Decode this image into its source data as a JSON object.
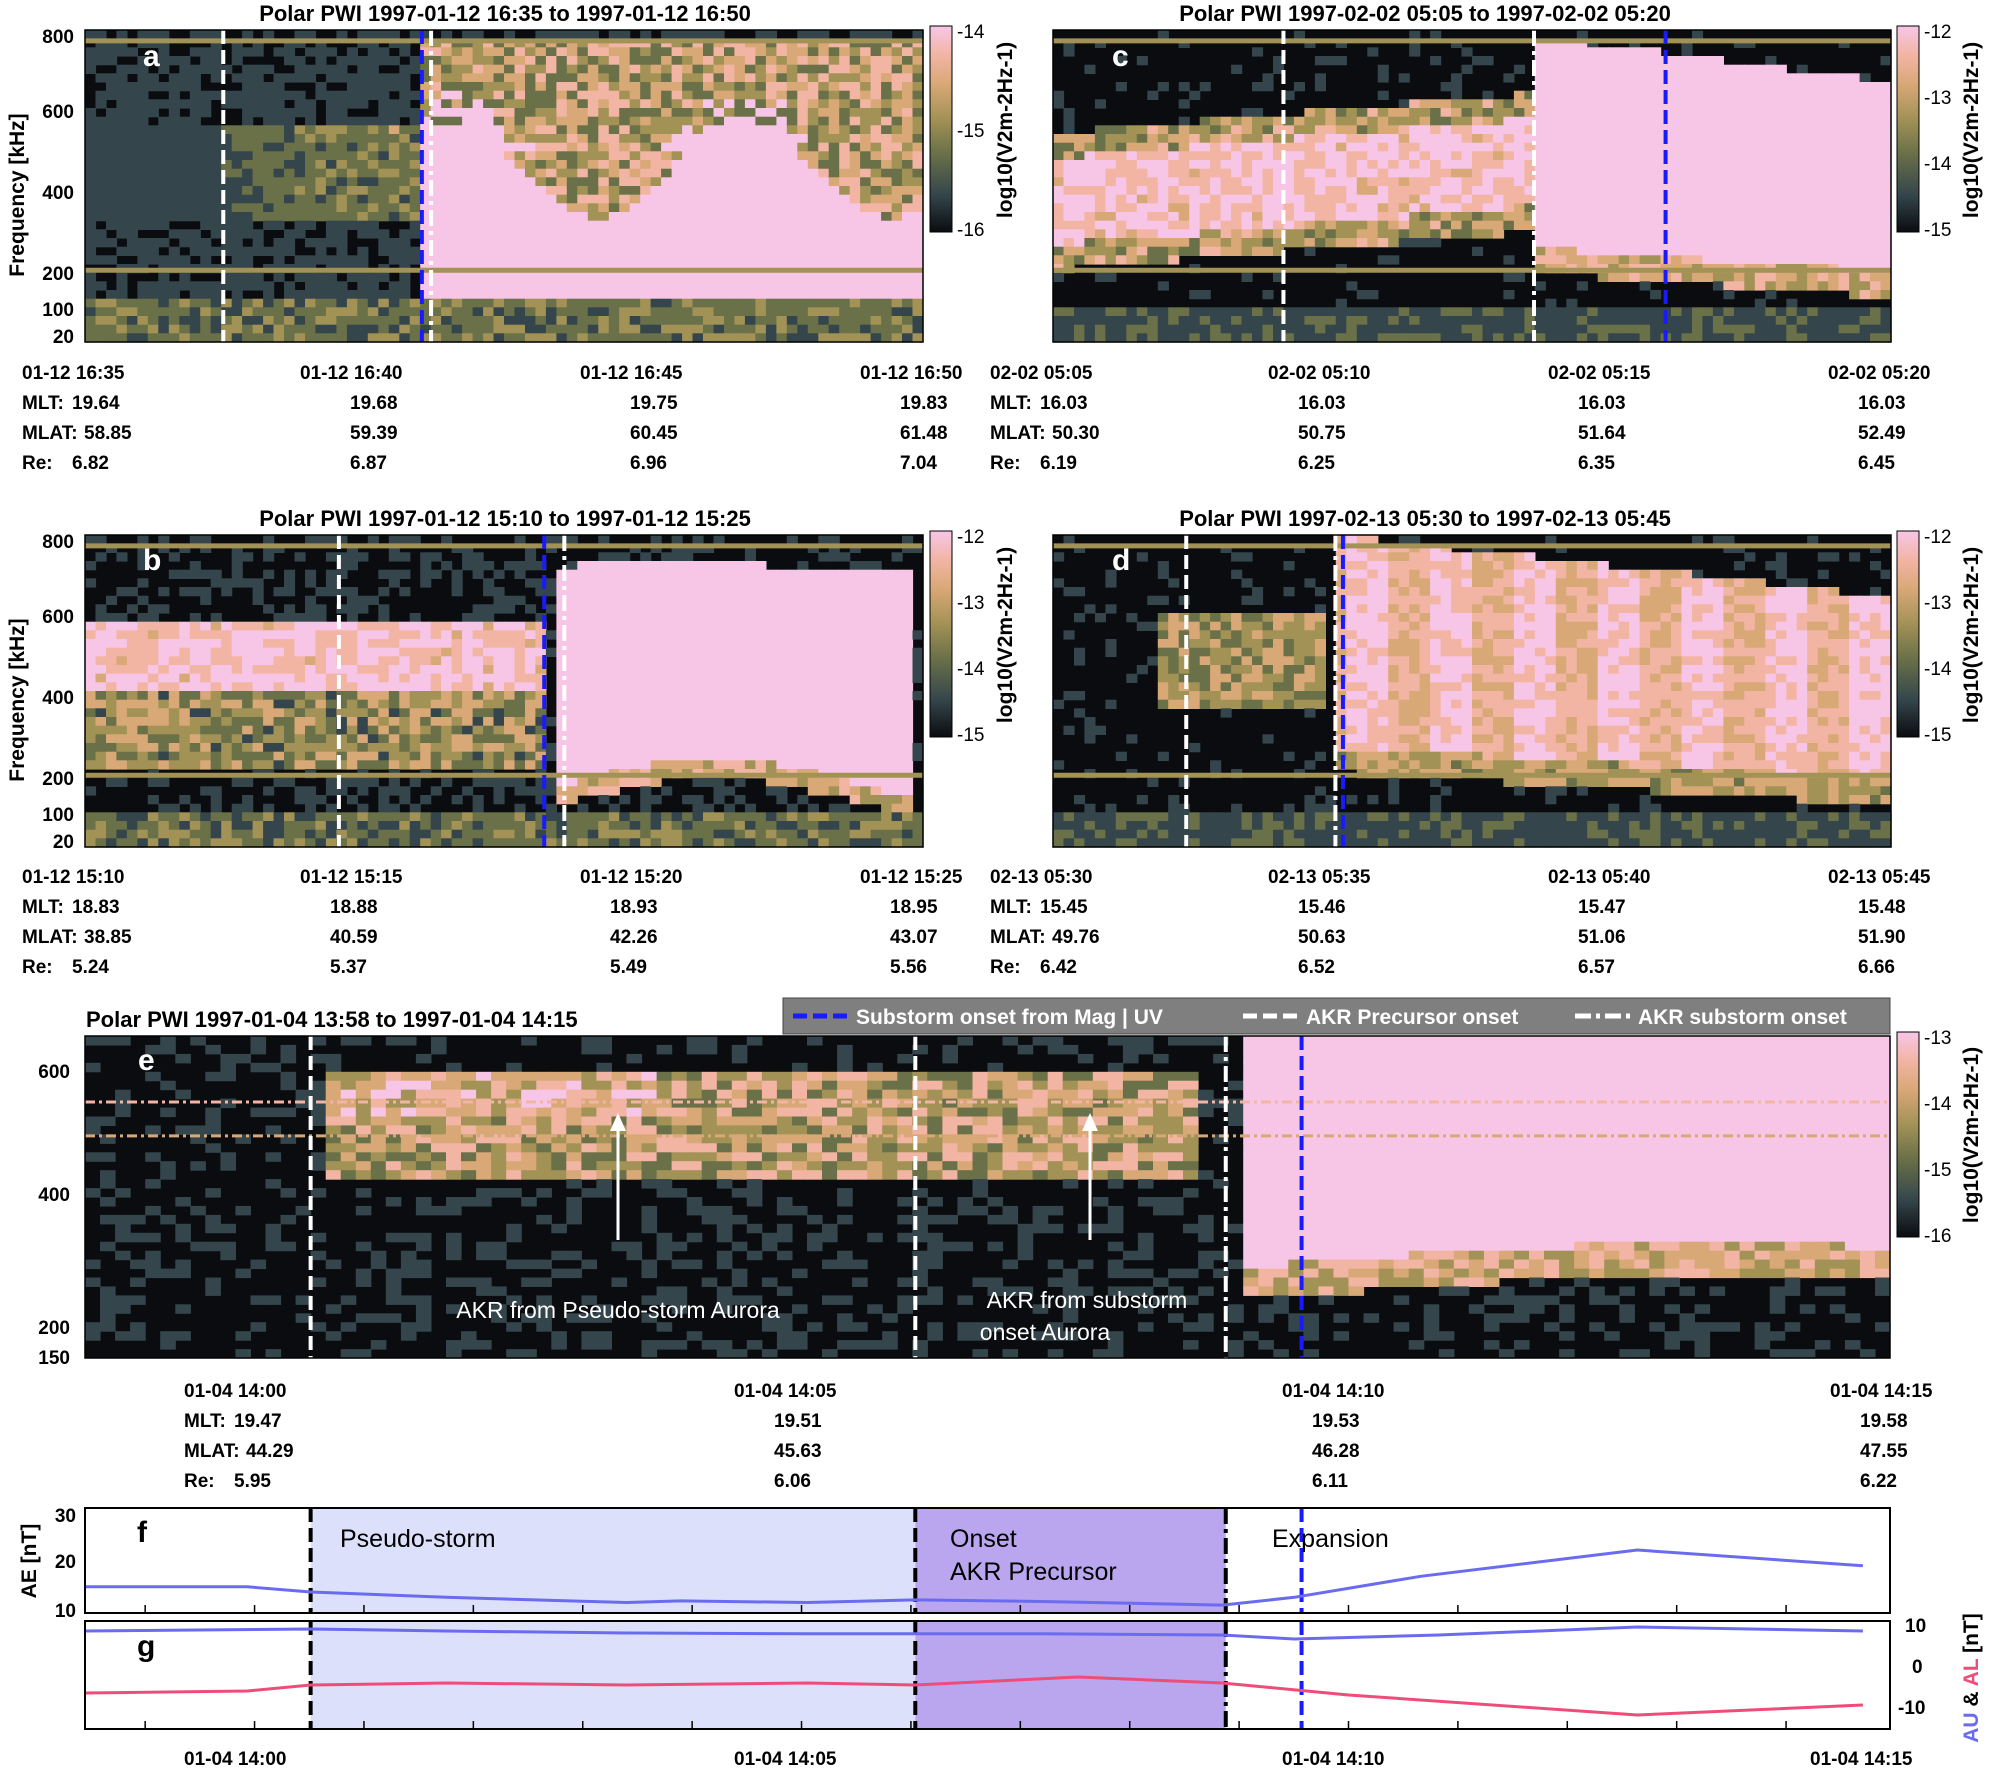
{
  "colormap": [
    "#0a0c10",
    "#34464c",
    "#6a7048",
    "#a39256",
    "#d9a877",
    "#f2b5a4",
    "#f7c6e7"
  ],
  "line_colors": {
    "substorm_mag_uv": "#1a1aff",
    "ae": "#6b6bf0",
    "au": "#6b6bf0",
    "al": "#ee4d7a",
    "band_pseudo": "#dde0fa",
    "band_precursor": "#b9a6ee"
  },
  "legend": [
    {
      "label": "Substorm onset from Mag | UV",
      "style": "dash",
      "color": "#1a1aff"
    },
    {
      "label": "AKR Precursor onset",
      "style": "dash",
      "color": "#ffffff"
    },
    {
      "label": "AKR substorm onset",
      "style": "dashdot",
      "color": "#ffffff"
    }
  ],
  "chart_data": [
    {
      "type": "heatmap",
      "letter": "a",
      "title": "Polar PWI 1997-01-12 16:35 to 1997-01-12 16:50",
      "ylabel": "Frequency [kHz]",
      "yticks": [
        "800",
        "600",
        "400",
        "200",
        "100",
        "20"
      ],
      "colorbar": {
        "label": "log10(V2m-2Hz-1)",
        "ticks": [
          "-14",
          "-15",
          "-16"
        ],
        "range": [
          -16,
          -14
        ]
      },
      "xticks": [
        "01-12 16:35",
        "01-12 16:40",
        "01-12 16:45",
        "01-12 16:50"
      ],
      "ephemeris": {
        "MLT": [
          "19.64",
          "19.68",
          "19.75",
          "19.83"
        ],
        "MLAT": [
          "58.85",
          "59.39",
          "60.45",
          "61.48"
        ],
        "Re": [
          "6.82",
          "6.87",
          "6.96",
          "7.04"
        ]
      },
      "markers": [
        {
          "t": 0.165,
          "type": "precursor"
        },
        {
          "t": 0.402,
          "type": "mag_uv"
        },
        {
          "t": 0.413,
          "type": "akr_onset"
        }
      ]
    },
    {
      "type": "heatmap",
      "letter": "b",
      "title": "Polar PWI 1997-01-12 15:10 to 1997-01-12 15:25",
      "ylabel": "Frequency [kHz]",
      "yticks": [
        "800",
        "600",
        "400",
        "200",
        "100",
        "20"
      ],
      "colorbar": {
        "label": "log10(V2m-2Hz-1)",
        "ticks": [
          "-12",
          "-13",
          "-14",
          "-15"
        ],
        "range": [
          -15,
          -12
        ]
      },
      "xticks": [
        "01-12 15:10",
        "01-12 15:15",
        "01-12 15:20",
        "01-12 15:25"
      ],
      "ephemeris": {
        "MLT": [
          "18.83",
          "18.88",
          "18.93",
          "18.95"
        ],
        "MLAT": [
          "38.85",
          "40.59",
          "42.26",
          "43.07"
        ],
        "Re": [
          "5.24",
          "5.37",
          "5.49",
          "5.56"
        ]
      },
      "markers": [
        {
          "t": 0.303,
          "type": "precursor"
        },
        {
          "t": 0.548,
          "type": "mag_uv"
        },
        {
          "t": 0.572,
          "type": "akr_onset"
        }
      ]
    },
    {
      "type": "heatmap",
      "letter": "c",
      "title": "Polar PWI 1997-02-02 05:05 to 1997-02-02 05:20",
      "ylabel": "",
      "yticks": [],
      "colorbar": {
        "label": "log10(V2m-2Hz-1)",
        "ticks": [
          "-12",
          "-13",
          "-14",
          "-15"
        ],
        "range": [
          -15,
          -12
        ]
      },
      "xticks": [
        "02-02 05:05",
        "02-02 05:10",
        "02-02 05:15",
        "02-02 05:20"
      ],
      "ephemeris": {
        "MLT": [
          "16.03",
          "16.03",
          "16.03",
          "16.03"
        ],
        "MLAT": [
          "50.30",
          "50.75",
          "51.64",
          "52.49"
        ],
        "Re": [
          "6.19",
          "6.25",
          "6.35",
          "6.45"
        ]
      },
      "markers": [
        {
          "t": 0.275,
          "type": "precursor"
        },
        {
          "t": 0.574,
          "type": "akr_onset"
        },
        {
          "t": 0.731,
          "type": "mag_uv"
        }
      ]
    },
    {
      "type": "heatmap",
      "letter": "d",
      "title": "Polar PWI 1997-02-13 05:30 to 1997-02-13 05:45",
      "ylabel": "",
      "yticks": [],
      "colorbar": {
        "label": "log10(V2m-2Hz-1)",
        "ticks": [
          "-12",
          "-13",
          "-14",
          "-15"
        ],
        "range": [
          -15,
          -12
        ]
      },
      "xticks": [
        "02-13 05:30",
        "02-13 05:35",
        "02-13 05:40",
        "02-13 05:45"
      ],
      "ephemeris": {
        "MLT": [
          "15.45",
          "15.46",
          "15.47",
          "15.48"
        ],
        "MLAT": [
          "49.76",
          "50.63",
          "51.06",
          "51.90"
        ],
        "Re": [
          "6.42",
          "6.52",
          "6.57",
          "6.66"
        ]
      },
      "markers": [
        {
          "t": 0.159,
          "type": "precursor"
        },
        {
          "t": 0.337,
          "type": "akr_onset"
        },
        {
          "t": 0.346,
          "type": "mag_uv"
        }
      ]
    },
    {
      "type": "heatmap",
      "letter": "e",
      "title": "Polar PWI 1997-01-04 13:58 to 1997-01-04 14:15",
      "ylabel": "",
      "yticks": [
        "600",
        "400",
        "200",
        "150"
      ],
      "colorbar": {
        "label": "log10(V2m-2Hz-1)",
        "ticks": [
          "-13",
          "-14",
          "-15",
          "-16"
        ],
        "range": [
          -16,
          -13
        ]
      },
      "xticks": [
        "01-04 14:00",
        "01-04 14:05",
        "01-04 14:10",
        "01-04 14:15"
      ],
      "ephemeris": {
        "MLT": [
          "19.47",
          "19.51",
          "19.53",
          "19.58"
        ],
        "MLAT": [
          "44.29",
          "45.63",
          "46.28",
          "47.55"
        ],
        "Re": [
          "5.95",
          "6.06",
          "6.11",
          "6.22"
        ]
      },
      "annotations": [
        {
          "lines": [
            "AKR from Pseudo-storm Aurora"
          ]
        },
        {
          "lines": [
            "AKR from substorm",
            "onset Aurora"
          ]
        }
      ],
      "markers": [
        {
          "t": 0.125,
          "type": "precursor"
        },
        {
          "t": 0.46,
          "type": "precursor"
        },
        {
          "t": 0.632,
          "type": "akr_onset"
        },
        {
          "t": 0.674,
          "type": "mag_uv"
        }
      ]
    },
    {
      "type": "line",
      "letter": "f",
      "ylabel": "AE [nT]",
      "yticks": [
        "30",
        "20",
        "10"
      ],
      "ylim": [
        10,
        30
      ],
      "series": [
        {
          "key": "AE",
          "x": [
            0,
            0.09,
            0.125,
            0.2,
            0.3,
            0.33,
            0.4,
            0.46,
            0.53,
            0.63,
            0.67,
            0.74,
            0.86,
            0.985
          ],
          "values": [
            15,
            15,
            14,
            13,
            12,
            12.3,
            12,
            12.5,
            12.2,
            11.5,
            13,
            17,
            22,
            19
          ]
        }
      ],
      "phases": [
        {
          "label_lines": [
            "Pseudo-storm"
          ],
          "from": 0.125,
          "to": 0.46
        },
        {
          "label_lines": [
            "Onset",
            "AKR Precursor"
          ],
          "from": 0.46,
          "to": 0.632
        },
        {
          "label_lines": [
            "Expansion"
          ],
          "from": 0.632,
          "to": 1.0
        }
      ]
    },
    {
      "type": "line",
      "letter": "g",
      "ylabel_au": "AU",
      "ylabel_sep": " & ",
      "ylabel_al": "AL",
      "ylabel_unit": " [nT]",
      "yticks": [
        "10",
        "0",
        "-10"
      ],
      "ylim": [
        -16,
        11
      ],
      "xticks": [
        "01-04 14:00",
        "01-04 14:05",
        "01-04 14:10",
        "01-04 14:15"
      ],
      "series": [
        {
          "key": "AU",
          "x": [
            0,
            0.125,
            0.2,
            0.3,
            0.4,
            0.53,
            0.63,
            0.67,
            0.75,
            0.86,
            0.985
          ],
          "values": [
            8.5,
            9,
            8.5,
            8,
            7.8,
            7.8,
            7.5,
            6.5,
            7.5,
            9.5,
            8.5
          ]
        },
        {
          "key": "AL",
          "x": [
            0,
            0.09,
            0.125,
            0.2,
            0.3,
            0.4,
            0.46,
            0.55,
            0.63,
            0.7,
            0.86,
            0.985
          ],
          "values": [
            -7,
            -6.5,
            -5,
            -4.5,
            -5,
            -4.5,
            -5,
            -3,
            -4.5,
            -7.5,
            -12.5,
            -10
          ]
        }
      ]
    }
  ]
}
